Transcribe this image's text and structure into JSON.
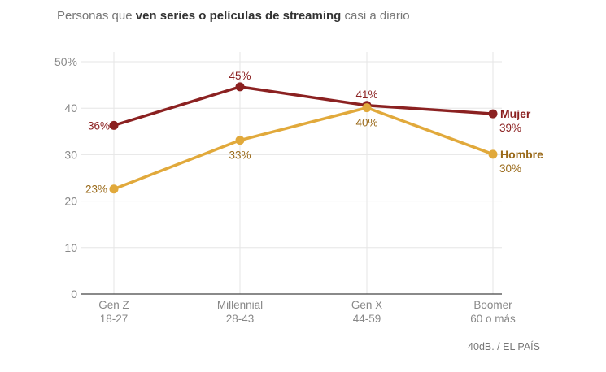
{
  "title": {
    "prefix": "Personas que ",
    "bold": "ven series o películas de streaming",
    "suffix": " casi a diario"
  },
  "source": "40dB. / EL PAÍS",
  "chart_data": {
    "type": "line",
    "categories": [
      "Gen Z",
      "Millennial",
      "Gen X",
      "Boomer"
    ],
    "category_sublabels": [
      "18-27",
      "28-43",
      "44-59",
      "60 o más"
    ],
    "ylim": [
      0,
      50
    ],
    "yticks": [
      0,
      10,
      20,
      30,
      40,
      50
    ],
    "ytick_labels": [
      "0",
      "10",
      "20",
      "30",
      "40",
      "50%"
    ],
    "grid": true,
    "series": [
      {
        "name": "Mujer",
        "color": "#8b2121",
        "values": [
          36.3,
          44.6,
          40.6,
          38.8
        ],
        "data_labels": [
          "36%",
          "45%",
          "41%",
          "39%"
        ]
      },
      {
        "name": "Hombre",
        "color": "#e1a93b",
        "values": [
          22.6,
          33.1,
          40.1,
          30.1
        ],
        "data_labels": [
          "23%",
          "33%",
          "40%",
          "30%"
        ]
      }
    ]
  }
}
